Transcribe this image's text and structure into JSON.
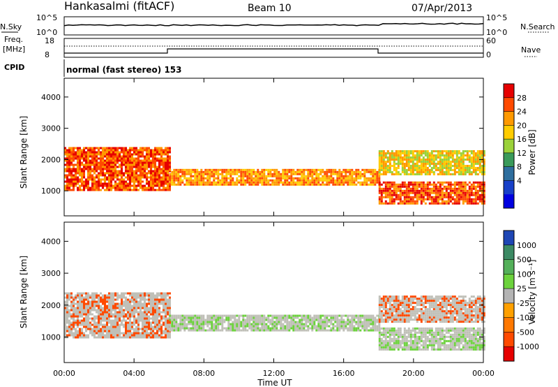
{
  "header": {
    "station": "Hankasalmi (fitACF)",
    "beam": "Beam 10",
    "date": "07/Apr/2013"
  },
  "top_panels": {
    "nsky_label": "N.Sky",
    "nsky_ticks": [
      "10^5",
      "10^0"
    ],
    "nsearch_label": "N.Search",
    "nsearch_ticks": [
      "10^5",
      "10^0"
    ],
    "freq_label_1": "Freq.",
    "freq_label_2": "[MHz]",
    "freq_ticks": [
      "18",
      "8"
    ],
    "nave_label": "Nave",
    "nave_ticks": [
      "60",
      "0"
    ],
    "cpid_label": "CPID",
    "cpid_text": "normal (fast stereo) 153"
  },
  "power_colorbar": {
    "title": "Power [dB]",
    "ticks": [
      "28",
      "24",
      "20",
      "16",
      "12",
      "8",
      "4"
    ],
    "colors": [
      "#e60000",
      "#ff4a00",
      "#ff9900",
      "#ffcc00",
      "#9bd23a",
      "#3a9a5a",
      "#2e6e9e",
      "#1840c8",
      "#0000e0"
    ]
  },
  "velocity_colorbar": {
    "title": "Velocity [m s⁻¹]",
    "ticks": [
      "1000",
      "500",
      "100",
      "25",
      "-25",
      "-100",
      "-500",
      "-1000"
    ],
    "colors": [
      "#1e46b4",
      "#3c8a64",
      "#54b05a",
      "#6cd23c",
      "#b4b4b4",
      "#ffa000",
      "#ff7800",
      "#ff4a00",
      "#e60000"
    ]
  },
  "chart_data": [
    {
      "type": "heatmap",
      "title": "",
      "xlabel": "Time UT",
      "ylabel": "Slant Range [km]",
      "x_ticks": [
        "00:00",
        "04:00",
        "08:00",
        "12:00",
        "16:00",
        "20:00",
        "00:00"
      ],
      "x_range_hours": [
        0,
        24
      ],
      "y_ticks": [
        "1000",
        "2000",
        "3000",
        "4000"
      ],
      "ylim": [
        200,
        4600
      ],
      "colorbar": "Power [dB]",
      "colorbar_range": [
        0,
        30
      ],
      "features": [
        {
          "t_start": 0,
          "t_end": 6,
          "range_low": 1000,
          "range_high": 2400,
          "value": 28
        },
        {
          "t_start": 6,
          "t_end": 18,
          "range_low": 1200,
          "range_high": 1700,
          "value": 24
        },
        {
          "t_start": 18,
          "t_end": 24,
          "range_low": 600,
          "range_high": 1300,
          "value": 28
        },
        {
          "t_start": 18,
          "t_end": 24,
          "range_low": 1500,
          "range_high": 2300,
          "value": 20
        }
      ]
    },
    {
      "type": "heatmap",
      "title": "",
      "xlabel": "Time UT",
      "ylabel": "Slant Range [km]",
      "x_ticks": [
        "00:00",
        "04:00",
        "08:00",
        "12:00",
        "16:00",
        "20:00",
        "00:00"
      ],
      "x_range_hours": [
        0,
        24
      ],
      "y_ticks": [
        "1000",
        "2000",
        "3000",
        "4000"
      ],
      "ylim": [
        200,
        4600
      ],
      "colorbar": "Velocity [m s⁻¹]",
      "colorbar_range": [
        -1000,
        1000
      ],
      "features": [
        {
          "t_start": 0,
          "t_end": 6,
          "range_low": 1000,
          "range_high": 2400,
          "value": -300
        },
        {
          "t_start": 6,
          "t_end": 18,
          "range_low": 1200,
          "range_high": 1700,
          "value": 0
        },
        {
          "t_start": 18,
          "t_end": 24,
          "range_low": 600,
          "range_high": 1300,
          "value": 0
        },
        {
          "t_start": 18,
          "t_end": 24,
          "range_low": 1500,
          "range_high": 2300,
          "value": -200
        }
      ]
    }
  ]
}
